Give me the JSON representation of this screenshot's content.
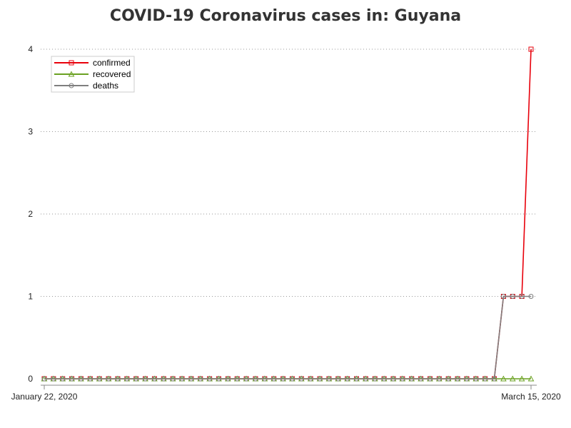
{
  "chart_data": {
    "type": "line",
    "title": "COVID-19 Coronavirus cases in: Guyana",
    "xlabel": "",
    "ylabel": "",
    "x": [
      "2020-01-22",
      "2020-01-23",
      "2020-01-24",
      "2020-01-25",
      "2020-01-26",
      "2020-01-27",
      "2020-01-28",
      "2020-01-29",
      "2020-01-30",
      "2020-01-31",
      "2020-02-01",
      "2020-02-02",
      "2020-02-03",
      "2020-02-04",
      "2020-02-05",
      "2020-02-06",
      "2020-02-07",
      "2020-02-08",
      "2020-02-09",
      "2020-02-10",
      "2020-02-11",
      "2020-02-12",
      "2020-02-13",
      "2020-02-14",
      "2020-02-15",
      "2020-02-16",
      "2020-02-17",
      "2020-02-18",
      "2020-02-19",
      "2020-02-20",
      "2020-02-21",
      "2020-02-22",
      "2020-02-23",
      "2020-02-24",
      "2020-02-25",
      "2020-02-26",
      "2020-02-27",
      "2020-02-28",
      "2020-02-29",
      "2020-03-01",
      "2020-03-02",
      "2020-03-03",
      "2020-03-04",
      "2020-03-05",
      "2020-03-06",
      "2020-03-07",
      "2020-03-08",
      "2020-03-09",
      "2020-03-10",
      "2020-03-11",
      "2020-03-12",
      "2020-03-13",
      "2020-03-14",
      "2020-03-15"
    ],
    "x_tick_labels": [
      "January 22, 2020",
      "March 15, 2020"
    ],
    "y_ticks": [
      0,
      1,
      2,
      3,
      4
    ],
    "ylim": [
      0,
      4
    ],
    "grid": true,
    "legend_position": "top-left",
    "series": [
      {
        "name": "confirmed",
        "color": "#e8000b",
        "marker": "square",
        "values": [
          0,
          0,
          0,
          0,
          0,
          0,
          0,
          0,
          0,
          0,
          0,
          0,
          0,
          0,
          0,
          0,
          0,
          0,
          0,
          0,
          0,
          0,
          0,
          0,
          0,
          0,
          0,
          0,
          0,
          0,
          0,
          0,
          0,
          0,
          0,
          0,
          0,
          0,
          0,
          0,
          0,
          0,
          0,
          0,
          0,
          0,
          0,
          0,
          0,
          0,
          1,
          1,
          1,
          4
        ]
      },
      {
        "name": "recovered",
        "color": "#6aa121",
        "marker": "triangle",
        "values": [
          0,
          0,
          0,
          0,
          0,
          0,
          0,
          0,
          0,
          0,
          0,
          0,
          0,
          0,
          0,
          0,
          0,
          0,
          0,
          0,
          0,
          0,
          0,
          0,
          0,
          0,
          0,
          0,
          0,
          0,
          0,
          0,
          0,
          0,
          0,
          0,
          0,
          0,
          0,
          0,
          0,
          0,
          0,
          0,
          0,
          0,
          0,
          0,
          0,
          0,
          0,
          0,
          0,
          0
        ]
      },
      {
        "name": "deaths",
        "color": "#7f7f7f",
        "marker": "circle",
        "values": [
          0,
          0,
          0,
          0,
          0,
          0,
          0,
          0,
          0,
          0,
          0,
          0,
          0,
          0,
          0,
          0,
          0,
          0,
          0,
          0,
          0,
          0,
          0,
          0,
          0,
          0,
          0,
          0,
          0,
          0,
          0,
          0,
          0,
          0,
          0,
          0,
          0,
          0,
          0,
          0,
          0,
          0,
          0,
          0,
          0,
          0,
          0,
          0,
          0,
          0,
          1,
          1,
          1,
          1
        ]
      }
    ]
  }
}
